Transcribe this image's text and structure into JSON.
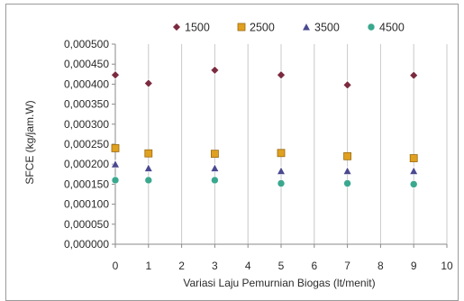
{
  "chart_data": {
    "type": "scatter",
    "title": "",
    "xlabel": "Variasi Laju Pemurnian Biogas (lt/menit)",
    "ylabel": "SFCE (kg/jam.W)",
    "xlim": [
      0,
      10
    ],
    "ylim": [
      0,
      0.0005
    ],
    "x_ticks": [
      "0",
      "1",
      "2",
      "3",
      "4",
      "5",
      "6",
      "7",
      "8",
      "9",
      "10"
    ],
    "y_ticks": [
      "0,000000",
      "0,000050",
      "0,000100",
      "0,000150",
      "0,000200",
      "0,000250",
      "0,000300",
      "0,000350",
      "0,000400",
      "0,000450",
      "0,000500"
    ],
    "grid": "vertical",
    "legend_position": "top",
    "series": [
      {
        "name": "1500",
        "marker": "diamond",
        "color": "#7b2a3f",
        "x": [
          0,
          1,
          3,
          5,
          7,
          9
        ],
        "y": [
          0.000423,
          0.000402,
          0.000435,
          0.000423,
          0.000398,
          0.000422
        ]
      },
      {
        "name": "2500",
        "marker": "square",
        "color": "#e0a020",
        "x": [
          0,
          1,
          3,
          5,
          7,
          9
        ],
        "y": [
          0.00024,
          0.000227,
          0.000226,
          0.000228,
          0.00022,
          0.000215
        ]
      },
      {
        "name": "3500",
        "marker": "triangle",
        "color": "#4a4990",
        "x": [
          0,
          1,
          3,
          5,
          7,
          9
        ],
        "y": [
          0.0002,
          0.00019,
          0.00019,
          0.000183,
          0.000183,
          0.000183
        ]
      },
      {
        "name": "4500",
        "marker": "circle",
        "color": "#3aa88e",
        "x": [
          0,
          1,
          3,
          5,
          7,
          9
        ],
        "y": [
          0.00016,
          0.00016,
          0.00016,
          0.000152,
          0.000152,
          0.00015
        ]
      }
    ]
  }
}
